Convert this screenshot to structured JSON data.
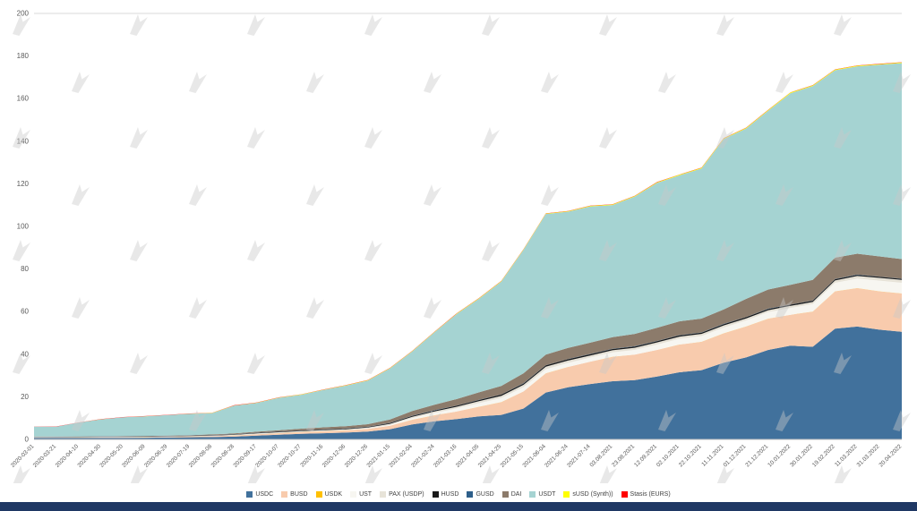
{
  "page": {
    "background": "#ffffff",
    "bottom_bar_color": "#1f3864",
    "watermark_color": "#c8c8c8"
  },
  "chart_data": {
    "type": "area",
    "stacked": true,
    "title": "",
    "xlabel": "",
    "ylabel": "",
    "ylim": [
      0,
      200
    ],
    "yticks": [
      0,
      20,
      40,
      60,
      80,
      100,
      120,
      140,
      160,
      180,
      200
    ],
    "grid": "top-line-only",
    "legend_position": "bottom",
    "axis_text_color": "#595959",
    "x_labels": [
      "2020-03-01",
      "2020-03-21",
      "2020-04-10",
      "2020-04-30",
      "2020-05-20",
      "2020-06-09",
      "2020-06-29",
      "2020-07-19",
      "2020-08-08",
      "2020-08-28",
      "2020-09-17",
      "2020-10-07",
      "2020-10-27",
      "2020-11-16",
      "2020-12-06",
      "2020-12-26",
      "2021-01-15",
      "2021-02-04",
      "2021-02-24",
      "2021-03-16",
      "2021-04-05",
      "2021-04-25",
      "2021-05-15",
      "2021-06-04",
      "2021-06-24",
      "2021-07-14",
      "03.08.2021",
      "23.08.2021",
      "12.09.2021",
      "02.10.2021",
      "22.10.2021",
      "11.11.2021",
      "01.12.2021",
      "21.12.2021",
      "10.01.2022",
      "30.01.2022",
      "19.02.2022",
      "11.03.2022",
      "31.03.2022",
      "20.04.2022"
    ],
    "series": [
      {
        "name": "USDC",
        "label": "USDC",
        "color": "#41719c",
        "values": [
          0.7,
          0.7,
          0.7,
          0.75,
          0.75,
          0.8,
          0.9,
          1.0,
          1.1,
          1.3,
          1.8,
          2.2,
          2.6,
          2.9,
          3.2,
          3.7,
          4.8,
          7.0,
          8.5,
          9.6,
          10.8,
          11.5,
          14.5,
          22.0,
          24.5,
          26.0,
          27.3,
          27.8,
          29.5,
          31.5,
          32.5,
          36.0,
          38.5,
          42.0,
          44.0,
          43.5,
          52.0,
          53.0,
          51.5,
          50.5
        ]
      },
      {
        "name": "BUSD",
        "label": "BUSD",
        "color": "#f8cbad",
        "values": [
          0.15,
          0.17,
          0.19,
          0.2,
          0.2,
          0.2,
          0.25,
          0.3,
          0.4,
          0.5,
          0.6,
          0.7,
          0.8,
          0.9,
          1.0,
          1.2,
          1.6,
          2.2,
          2.8,
          3.5,
          4.5,
          6.0,
          8.0,
          9.0,
          9.5,
          10.5,
          11.5,
          12.0,
          12.5,
          13.0,
          13.3,
          13.8,
          14.5,
          14.7,
          14.5,
          16.5,
          17.5,
          18.0,
          18.0,
          18.0
        ]
      },
      {
        "name": "USDK",
        "label": "USDK",
        "color": "#ffc000",
        "values": [
          0.03,
          0.03,
          0.03,
          0.03,
          0.03,
          0.03,
          0.03,
          0.03,
          0.03,
          0.03,
          0.03,
          0.03,
          0.03,
          0.03,
          0.03,
          0.03,
          0.03,
          0.03,
          0.03,
          0.03,
          0.03,
          0.03,
          0.03,
          0.03,
          0.03,
          0.03,
          0.03,
          0.03,
          0.03,
          0.03,
          0.03,
          0.03,
          0.03,
          0.03,
          0.03,
          0.03,
          0.03,
          0.03,
          0.03,
          0.03
        ]
      },
      {
        "name": "UST",
        "label": "UST",
        "color": "#f7f6f1",
        "values": [
          0,
          0,
          0,
          0,
          0,
          0,
          0,
          0,
          0,
          0.05,
          0.1,
          0.15,
          0.15,
          0.15,
          0.15,
          0.2,
          0.4,
          0.8,
          1.1,
          1.4,
          1.7,
          1.9,
          2.0,
          1.9,
          1.9,
          1.9,
          2.0,
          2.2,
          2.5,
          2.7,
          2.7,
          2.7,
          2.8,
          3.0,
          3.2,
          3.5,
          4.0,
          4.5,
          5.0,
          5.0
        ]
      },
      {
        "name": "PAX",
        "label": "PAX (USDP)",
        "color": "#e7e3d8",
        "values": [
          0.2,
          0.2,
          0.22,
          0.24,
          0.24,
          0.25,
          0.25,
          0.25,
          0.25,
          0.25,
          0.3,
          0.3,
          0.3,
          0.3,
          0.35,
          0.4,
          0.5,
          0.6,
          0.7,
          0.8,
          0.9,
          1.0,
          1.1,
          1.2,
          1.1,
          1.0,
          1.0,
          1.0,
          1.0,
          1.0,
          1.0,
          1.0,
          0.95,
          0.95,
          0.95,
          1.0,
          1.1,
          1.2,
          1.3,
          1.4
        ]
      },
      {
        "name": "HUSD",
        "label": "HUSD",
        "color": "#1a1a1a",
        "values": [
          0.1,
          0.1,
          0.1,
          0.1,
          0.12,
          0.13,
          0.14,
          0.15,
          0.17,
          0.2,
          0.23,
          0.25,
          0.27,
          0.3,
          0.3,
          0.3,
          0.35,
          0.4,
          0.45,
          0.5,
          0.55,
          0.6,
          0.6,
          0.6,
          0.6,
          0.6,
          0.6,
          0.6,
          0.6,
          0.6,
          0.6,
          0.6,
          0.6,
          0.6,
          0.6,
          0.6,
          0.6,
          0.55,
          0.5,
          0.45
        ]
      },
      {
        "name": "GUSD",
        "label": "GUSD",
        "color": "#2e5f8a",
        "values": [
          0.1,
          0.1,
          0.1,
          0.1,
          0.1,
          0.1,
          0.1,
          0.1,
          0.1,
          0.1,
          0.1,
          0.1,
          0.1,
          0.1,
          0.1,
          0.1,
          0.1,
          0.1,
          0.1,
          0.1,
          0.1,
          0.1,
          0.1,
          0.1,
          0.1,
          0.1,
          0.1,
          0.1,
          0.1,
          0.1,
          0.1,
          0.1,
          0.1,
          0.1,
          0.1,
          0.1,
          0.1,
          0.1,
          0.1,
          0.1
        ]
      },
      {
        "name": "DAI",
        "label": "DAI",
        "color": "#8c7b6b",
        "values": [
          0.08,
          0.09,
          0.1,
          0.1,
          0.12,
          0.13,
          0.15,
          0.2,
          0.3,
          0.4,
          0.45,
          0.6,
          0.8,
          1.0,
          1.1,
          1.2,
          1.6,
          2.2,
          2.6,
          3.0,
          3.5,
          4.0,
          4.7,
          5.0,
          5.2,
          5.3,
          5.5,
          5.8,
          6.2,
          6.5,
          6.5,
          6.8,
          8.5,
          9.0,
          9.2,
          9.7,
          10.0,
          9.8,
          9.5,
          9.2
        ]
      },
      {
        "name": "USDT",
        "label": "USDT",
        "color": "#a5d3d2",
        "values": [
          4.6,
          4.6,
          6.4,
          7.9,
          8.8,
          9.2,
          9.6,
          10.0,
          10.0,
          13.0,
          13.5,
          15.2,
          15.9,
          17.5,
          19.0,
          20.5,
          24.0,
          28.0,
          34.0,
          40.0,
          44.0,
          49.0,
          58.0,
          66.0,
          64.0,
          64.0,
          62.0,
          64.5,
          68.0,
          68.5,
          70.5,
          80.0,
          80.0,
          84.0,
          90.0,
          91.0,
          88.0,
          88.0,
          90.0,
          92.0
        ]
      },
      {
        "name": "sUSD",
        "label": "sUSD (Synth))",
        "color": "#ffff00",
        "values": [
          0.01,
          0.01,
          0.02,
          0.02,
          0.03,
          0.03,
          0.05,
          0.05,
          0.08,
          0.1,
          0.12,
          0.12,
          0.13,
          0.13,
          0.14,
          0.15,
          0.15,
          0.18,
          0.2,
          0.2,
          0.2,
          0.2,
          0.2,
          0.2,
          0.2,
          0.25,
          0.25,
          0.25,
          0.3,
          0.3,
          0.3,
          0.3,
          0.3,
          0.3,
          0.3,
          0.3,
          0.3,
          0.3,
          0.3,
          0.3
        ]
      },
      {
        "name": "StasisEURS",
        "label": "Stasis (EURS)",
        "color": "#ff0000",
        "values": [
          0.1,
          0.1,
          0.1,
          0.1,
          0.1,
          0.1,
          0.1,
          0.1,
          0.1,
          0.1,
          0.1,
          0.1,
          0.1,
          0.1,
          0.1,
          0.1,
          0.1,
          0.1,
          0.1,
          0.1,
          0.1,
          0.1,
          0.1,
          0.1,
          0.1,
          0.1,
          0.1,
          0.1,
          0.1,
          0.1,
          0.1,
          0.1,
          0.1,
          0.1,
          0.1,
          0.1,
          0.1,
          0.1,
          0.1,
          0.1
        ]
      }
    ]
  }
}
